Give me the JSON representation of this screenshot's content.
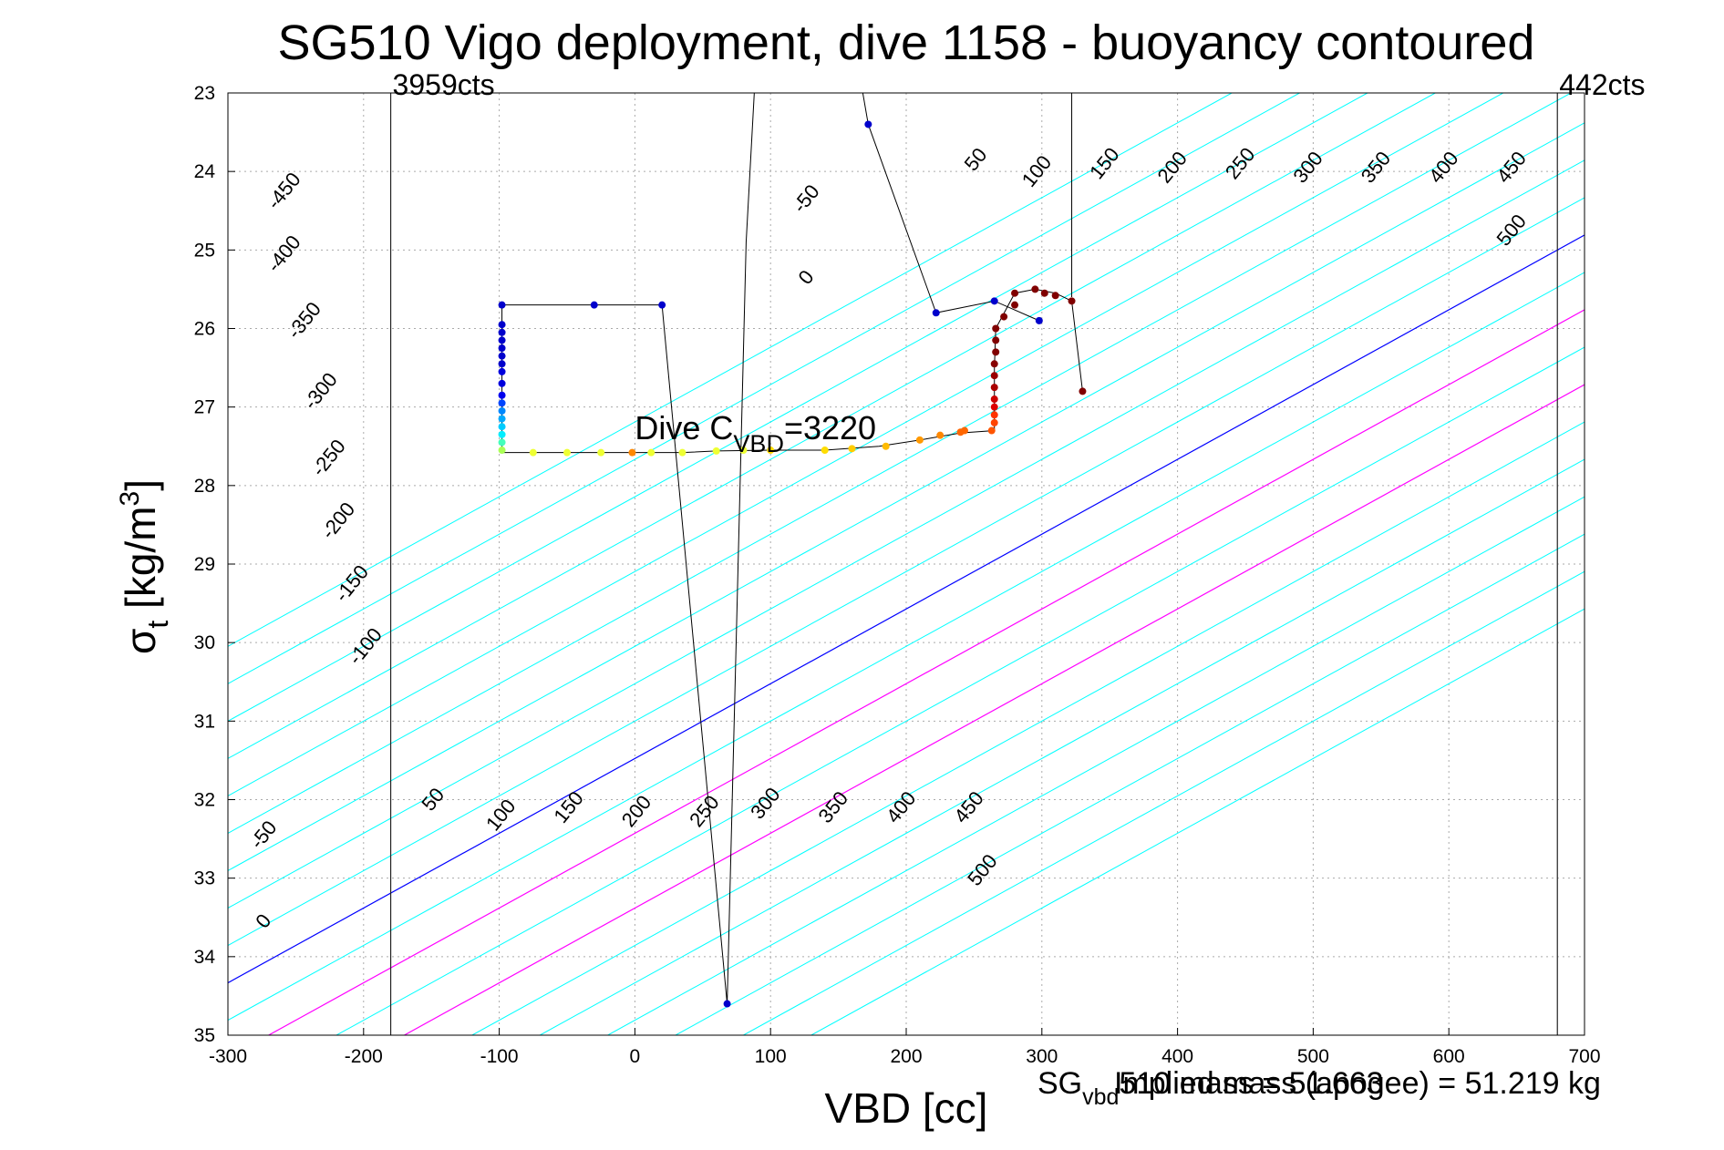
{
  "chart_data": {
    "type": "scatter",
    "title": "SG510 Vigo deployment, dive 1158 - buoyancy contoured",
    "xlabel": "VBD [cc]",
    "ylabel": {
      "main": "σ",
      "sub": "t",
      "unit": " [kg/m",
      "sup": "3",
      "close": "]"
    },
    "xlim": [
      -300,
      700
    ],
    "ylim": [
      23,
      35
    ],
    "y_reversed": true,
    "grid": true,
    "x_ticks": [
      -300,
      -200,
      -100,
      0,
      100,
      200,
      300,
      400,
      500,
      600,
      700
    ],
    "y_ticks": [
      23,
      24,
      25,
      26,
      27,
      28,
      29,
      30,
      31,
      32,
      33,
      34,
      35
    ],
    "colors": {
      "contour": "#00ffff",
      "zero": "#0000ff",
      "band": "#ff00ff",
      "trace": "#000000"
    },
    "contour_levels": [
      -450,
      -400,
      -350,
      -300,
      -250,
      -200,
      -150,
      -100,
      -50,
      0,
      50,
      100,
      150,
      200,
      250,
      300,
      350,
      400,
      450,
      500
    ],
    "contour_slope_cc_per_unit": 105,
    "contour_labels": [
      {
        "text": "-450",
        "x": -255,
        "y": 24.3
      },
      {
        "text": "-400",
        "x": -255,
        "y": 25.1
      },
      {
        "text": "-350",
        "x": -240,
        "y": 25.95
      },
      {
        "text": "-300",
        "x": -228,
        "y": 26.85
      },
      {
        "text": "-250",
        "x": -222,
        "y": 27.7
      },
      {
        "text": "-200",
        "x": -215,
        "y": 28.5
      },
      {
        "text": "-150",
        "x": -205,
        "y": 29.3
      },
      {
        "text": "-100",
        "x": -195,
        "y": 30.1
      },
      {
        "text": "-50",
        "x": 130,
        "y": 24.4
      },
      {
        "text": "0",
        "x": 130,
        "y": 25.4
      },
      {
        "text": "50",
        "x": 255,
        "y": 23.9
      },
      {
        "text": "100",
        "x": 300,
        "y": 24.05
      },
      {
        "text": "150",
        "x": 350,
        "y": 23.95
      },
      {
        "text": "200",
        "x": 400,
        "y": 24.0
      },
      {
        "text": "250",
        "x": 450,
        "y": 23.95
      },
      {
        "text": "300",
        "x": 500,
        "y": 24.0
      },
      {
        "text": "350",
        "x": 550,
        "y": 24.0
      },
      {
        "text": "400",
        "x": 600,
        "y": 24.0
      },
      {
        "text": "450",
        "x": 650,
        "y": 24.0
      },
      {
        "text": "500",
        "x": 650,
        "y": 24.8
      },
      {
        "text": "-50",
        "x": -270,
        "y": 32.5
      },
      {
        "text": "0",
        "x": -270,
        "y": 33.6
      },
      {
        "text": "50",
        "x": -145,
        "y": 32.05
      },
      {
        "text": "100",
        "x": -95,
        "y": 32.25
      },
      {
        "text": "150",
        "x": -45,
        "y": 32.15
      },
      {
        "text": "200",
        "x": 5,
        "y": 32.2
      },
      {
        "text": "250",
        "x": 55,
        "y": 32.2
      },
      {
        "text": "300",
        "x": 100,
        "y": 32.1
      },
      {
        "text": "350",
        "x": 150,
        "y": 32.15
      },
      {
        "text": "400",
        "x": 200,
        "y": 32.15
      },
      {
        "text": "450",
        "x": 250,
        "y": 32.15
      },
      {
        "text": "500",
        "x": 260,
        "y": 32.95
      }
    ],
    "vertical_lines": [
      {
        "x": -180,
        "label": "3959cts",
        "label_side": "right"
      },
      {
        "x": 680,
        "label": "442cts",
        "label_side": "right"
      }
    ],
    "trace": [
      [
        88,
        23.0
      ],
      [
        82,
        24.9
      ],
      [
        68,
        34.6
      ],
      [
        20,
        25.7
      ],
      [
        -30,
        25.7
      ],
      [
        -98,
        25.7
      ],
      [
        -98,
        27.58
      ],
      [
        -75,
        27.58
      ],
      [
        -50,
        27.58
      ],
      [
        -25,
        27.58
      ],
      [
        0,
        27.58
      ],
      [
        35,
        27.58
      ],
      [
        60,
        27.56
      ],
      [
        100,
        27.55
      ],
      [
        140,
        27.55
      ],
      [
        180,
        27.5
      ],
      [
        210,
        27.42
      ],
      [
        240,
        27.33
      ],
      [
        265,
        27.3
      ],
      [
        265,
        26.5
      ],
      [
        266,
        26.0
      ],
      [
        280,
        25.55
      ],
      [
        295,
        25.5
      ],
      [
        310,
        25.55
      ],
      [
        322,
        25.65
      ],
      [
        330,
        26.8
      ]
    ],
    "trace2": [
      [
        168,
        23.0
      ],
      [
        172,
        23.4
      ],
      [
        222,
        25.8
      ],
      [
        265,
        25.65
      ],
      [
        298,
        25.9
      ]
    ],
    "vertical_segment": {
      "x": 322,
      "y": [
        23.0,
        25.6
      ]
    },
    "points": [
      {
        "x": 172,
        "y": 23.4,
        "c": "#0000cc"
      },
      {
        "x": 68,
        "y": 34.6,
        "c": "#0000cc"
      },
      {
        "x": 20,
        "y": 25.7,
        "c": "#0000cc"
      },
      {
        "x": -30,
        "y": 25.7,
        "c": "#0000cc"
      },
      {
        "x": -98,
        "y": 25.7,
        "c": "#0000cc"
      },
      {
        "x": -98,
        "y": 25.95,
        "c": "#0000cc"
      },
      {
        "x": -98,
        "y": 26.05,
        "c": "#0000cc"
      },
      {
        "x": -98,
        "y": 26.15,
        "c": "#0000cc"
      },
      {
        "x": -98,
        "y": 26.25,
        "c": "#0000cc"
      },
      {
        "x": -98,
        "y": 26.35,
        "c": "#0000cc"
      },
      {
        "x": -98,
        "y": 26.45,
        "c": "#0000cc"
      },
      {
        "x": -98,
        "y": 26.55,
        "c": "#0000dd"
      },
      {
        "x": -98,
        "y": 26.7,
        "c": "#0000dd"
      },
      {
        "x": -98,
        "y": 26.85,
        "c": "#0000ee"
      },
      {
        "x": -98,
        "y": 26.95,
        "c": "#0044ff"
      },
      {
        "x": -98,
        "y": 27.05,
        "c": "#0088ff"
      },
      {
        "x": -98,
        "y": 27.15,
        "c": "#00aaff"
      },
      {
        "x": -98,
        "y": 27.25,
        "c": "#00ccff"
      },
      {
        "x": -98,
        "y": 27.35,
        "c": "#00eeff"
      },
      {
        "x": -98,
        "y": 27.45,
        "c": "#44ffbb"
      },
      {
        "x": -98,
        "y": 27.55,
        "c": "#aaff55"
      },
      {
        "x": -75,
        "y": 27.58,
        "c": "#eeff33"
      },
      {
        "x": -50,
        "y": 27.58,
        "c": "#eeff33"
      },
      {
        "x": -25,
        "y": 27.58,
        "c": "#eeff33"
      },
      {
        "x": -2,
        "y": 27.58,
        "c": "#ff8800"
      },
      {
        "x": 12,
        "y": 27.58,
        "c": "#eeff33"
      },
      {
        "x": 35,
        "y": 27.58,
        "c": "#eeff33"
      },
      {
        "x": 60,
        "y": 27.56,
        "c": "#eeff33"
      },
      {
        "x": 80,
        "y": 27.55,
        "c": "#eeff33"
      },
      {
        "x": 100,
        "y": 27.55,
        "c": "#ffdd00"
      },
      {
        "x": 140,
        "y": 27.55,
        "c": "#ffdd00"
      },
      {
        "x": 160,
        "y": 27.53,
        "c": "#ffcc00"
      },
      {
        "x": 185,
        "y": 27.5,
        "c": "#ffbb00"
      },
      {
        "x": 210,
        "y": 27.42,
        "c": "#ff9900"
      },
      {
        "x": 225,
        "y": 27.36,
        "c": "#ff8800"
      },
      {
        "x": 240,
        "y": 27.32,
        "c": "#ff6600"
      },
      {
        "x": 243,
        "y": 27.3,
        "c": "#ff6600"
      },
      {
        "x": 263,
        "y": 27.3,
        "c": "#ff5500"
      },
      {
        "x": 265,
        "y": 27.2,
        "c": "#ff4400"
      },
      {
        "x": 265,
        "y": 27.1,
        "c": "#ff3300"
      },
      {
        "x": 265,
        "y": 27.0,
        "c": "#dd0000"
      },
      {
        "x": 265,
        "y": 26.9,
        "c": "#cc0000"
      },
      {
        "x": 265,
        "y": 26.75,
        "c": "#aa0000"
      },
      {
        "x": 265,
        "y": 26.6,
        "c": "#990000"
      },
      {
        "x": 265,
        "y": 26.45,
        "c": "#880000"
      },
      {
        "x": 266,
        "y": 26.3,
        "c": "#800000"
      },
      {
        "x": 266,
        "y": 26.15,
        "c": "#800000"
      },
      {
        "x": 266,
        "y": 26.0,
        "c": "#800000"
      },
      {
        "x": 272,
        "y": 25.85,
        "c": "#800000"
      },
      {
        "x": 280,
        "y": 25.7,
        "c": "#800000"
      },
      {
        "x": 280,
        "y": 25.55,
        "c": "#800000"
      },
      {
        "x": 295,
        "y": 25.5,
        "c": "#800000"
      },
      {
        "x": 302,
        "y": 25.55,
        "c": "#800000"
      },
      {
        "x": 310,
        "y": 25.58,
        "c": "#800000"
      },
      {
        "x": 322,
        "y": 25.65,
        "c": "#800000"
      },
      {
        "x": 330,
        "y": 26.8,
        "c": "#800000"
      },
      {
        "x": 222,
        "y": 25.8,
        "c": "#0000cc"
      },
      {
        "x": 265,
        "y": 25.65,
        "c": "#0000cc"
      },
      {
        "x": 298,
        "y": 25.9,
        "c": "#0000cc"
      }
    ],
    "annotation": {
      "prefix": "Dive C",
      "sub": "VBD",
      "suffix": "=3220",
      "x": 0,
      "y": 27.55
    },
    "overlap_text": {
      "first": {
        "main": "SG",
        "sub": "vbd",
        "rest": "510 mass = 51.663"
      },
      "second": "Implied mass (apogee) = 51.219 kg"
    }
  }
}
